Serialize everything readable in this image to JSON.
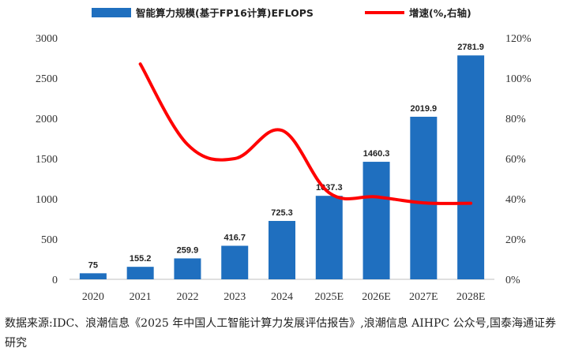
{
  "chart_data": {
    "type": "bar+line",
    "legend": [
      {
        "name": "智能算力规模(基于FP16计算)EFLOPS",
        "kind": "bar",
        "color": "#1f6fbf"
      },
      {
        "name": "增速(%,右轴)",
        "kind": "line",
        "color": "#ff0000"
      }
    ],
    "categories": [
      "2020",
      "2021",
      "2022",
      "2023",
      "2024",
      "2025E",
      "2026E",
      "2027E",
      "2028E"
    ],
    "series": [
      {
        "name": "智能算力规模(基于FP16计算)EFLOPS",
        "axis": "left",
        "type": "bar",
        "values": [
          75,
          155.2,
          259.9,
          416.7,
          725.3,
          1037.3,
          1460.3,
          2019.9,
          2781.9
        ],
        "labels": [
          "75",
          "155.2",
          "259.9",
          "416.7",
          "725.3",
          "1037.3",
          "1460.3",
          "2019.9",
          "2781.9"
        ]
      },
      {
        "name": "增速(%,右轴)",
        "axis": "right",
        "type": "line",
        "values": [
          null,
          107,
          67,
          60,
          74,
          43,
          41,
          38,
          37.8
        ]
      }
    ],
    "left_axis": {
      "min": 0,
      "max": 3000,
      "ticks": [
        "0",
        "500",
        "1000",
        "1500",
        "2000",
        "2500",
        "3000"
      ]
    },
    "right_axis": {
      "min": 0,
      "max": 120,
      "ticks": [
        "0%",
        "20%",
        "40%",
        "60%",
        "80%",
        "100%",
        "120%"
      ]
    },
    "legend_position": "top",
    "grid": false
  },
  "source_note": "数据来源:IDC、浪潮信息《2025 年中国人工智能计算力发展评估报告》,浪潮信息 AIHPC 公众号,国泰海通证券研究"
}
